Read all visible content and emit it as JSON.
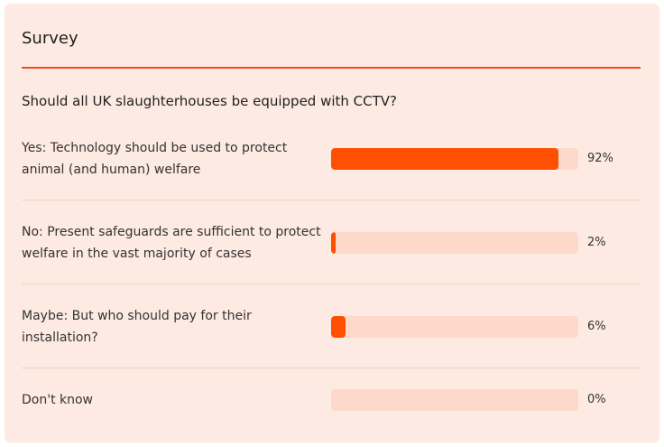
{
  "survey": {
    "title": "Survey",
    "question": "Should all UK slaughterhouses be equipped with CCTV?",
    "options": [
      {
        "label": "Yes: Technology should be used to protect animal (and human) welfare",
        "percent": 92,
        "percent_label": "92%"
      },
      {
        "label": "No: Present safeguards are sufficient to protect welfare in the vast majority of cases",
        "percent": 2,
        "percent_label": "2%"
      },
      {
        "label": "Maybe: But who should pay for their installation?",
        "percent": 6,
        "percent_label": "6%"
      },
      {
        "label": "Don't know",
        "percent": 0,
        "percent_label": "0%"
      }
    ]
  },
  "colors": {
    "card_background": "#fdeae2",
    "accent": "#fe5000",
    "bar_track": "#fcd9cb",
    "divider": "#f5cfbf"
  }
}
